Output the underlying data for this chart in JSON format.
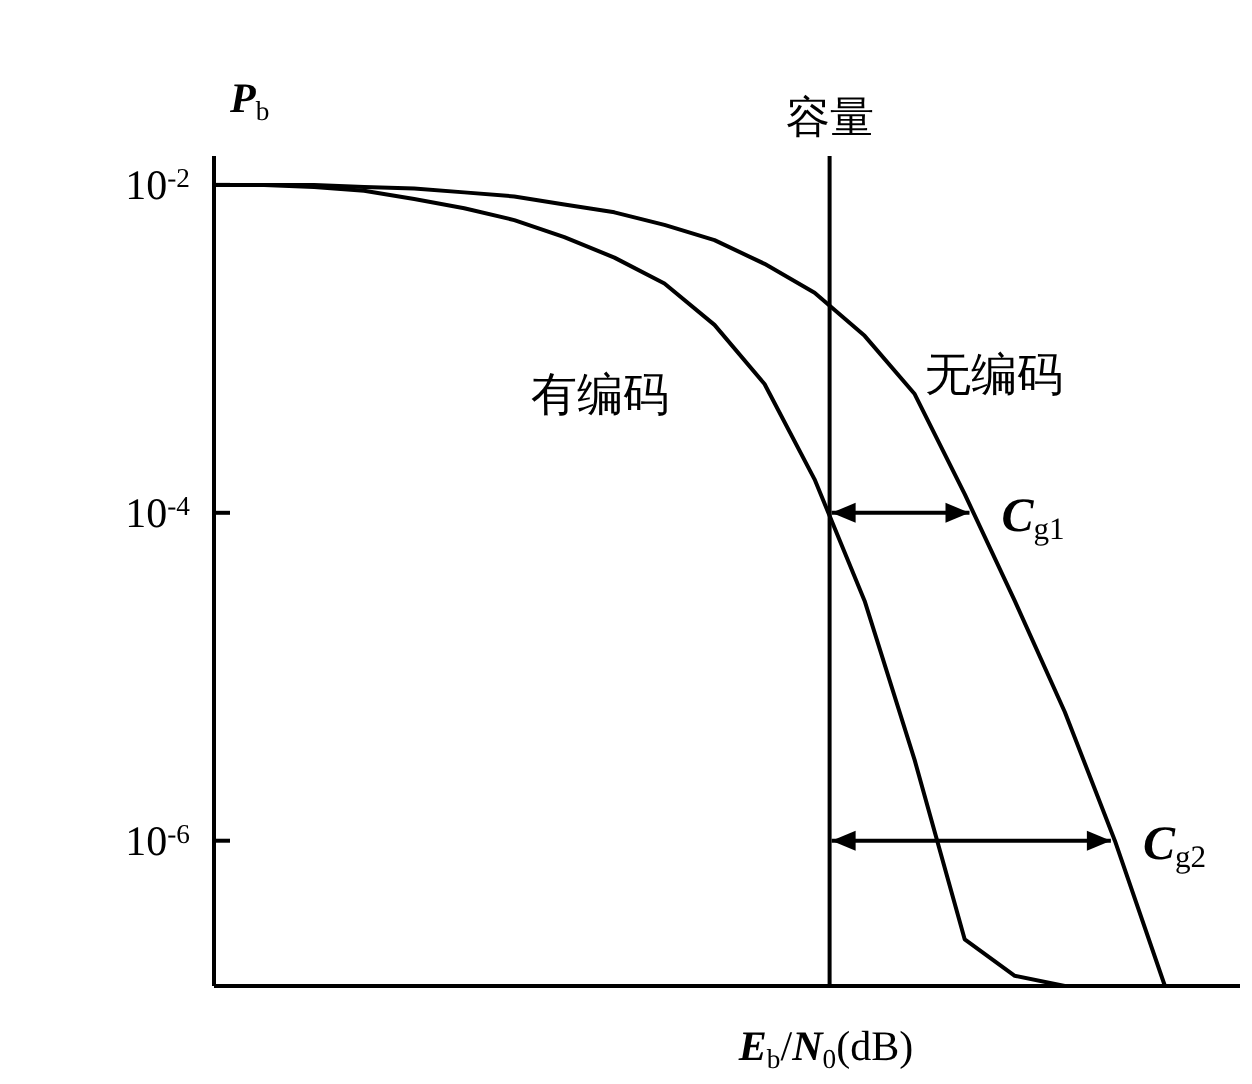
{
  "chart_data": {
    "type": "line",
    "xlabel": "*E*$_{b}$/*N*$_{0}$(dB)",
    "ylabel": "*P*$_{b}$",
    "categories": [
      null,
      null,
      null,
      null,
      null,
      null,
      null,
      null,
      null,
      null,
      null,
      null,
      null,
      null,
      null,
      null,
      null,
      null,
      null,
      null,
      null
    ],
    "ylim": [
      1.3e-07,
      0.015
    ],
    "log": "y",
    "yticks": [
      {
        "value": 0.01,
        "label": "10$^{-2}$"
      },
      {
        "value": 0.0001,
        "label": "10$^{-4}$"
      },
      {
        "value": 1e-06,
        "label": "10$^{-6}$"
      }
    ],
    "series": [
      {
        "name": "有编码",
        "color": "#000000",
        "values": [
          0.01,
          0.01,
          0.0097,
          0.0092,
          0.0082,
          0.0072,
          0.0061,
          0.0048,
          0.0036,
          0.0025,
          0.0014,
          0.00061,
          0.00016,
          2.9e-05,
          3.1e-06,
          2.5e-07,
          1.5e-07,
          1.3e-07,
          null,
          null,
          null
        ]
      },
      {
        "name": "无编码",
        "color": "#000000",
        "values": [
          0.01,
          0.01,
          0.01,
          0.0097,
          0.0095,
          0.009,
          0.0085,
          0.0076,
          0.0068,
          0.0057,
          0.0046,
          0.0033,
          0.0022,
          0.0012,
          0.00053,
          0.00013,
          2.9e-05,
          6.1e-06,
          1e-06,
          1.3e-07,
          null
        ]
      }
    ],
    "annotations": [
      "容量",
      "*C*$_{g1}$",
      "*C*$_{g2}$"
    ]
  }
}
